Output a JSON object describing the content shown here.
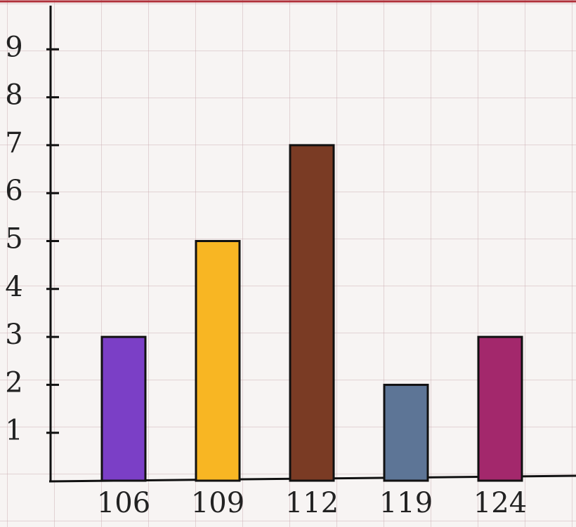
{
  "chart_data": {
    "type": "bar",
    "categories": [
      "106",
      "109",
      "112",
      "119",
      "124"
    ],
    "values": [
      3,
      5,
      7,
      2,
      3
    ],
    "colors": [
      "#7b3fc6",
      "#f8b623",
      "#7a3b24",
      "#5d7596",
      "#a3286c"
    ],
    "ylim": [
      0,
      10
    ],
    "yticks": [
      1,
      2,
      3,
      4,
      5,
      6,
      7,
      8,
      9
    ]
  }
}
